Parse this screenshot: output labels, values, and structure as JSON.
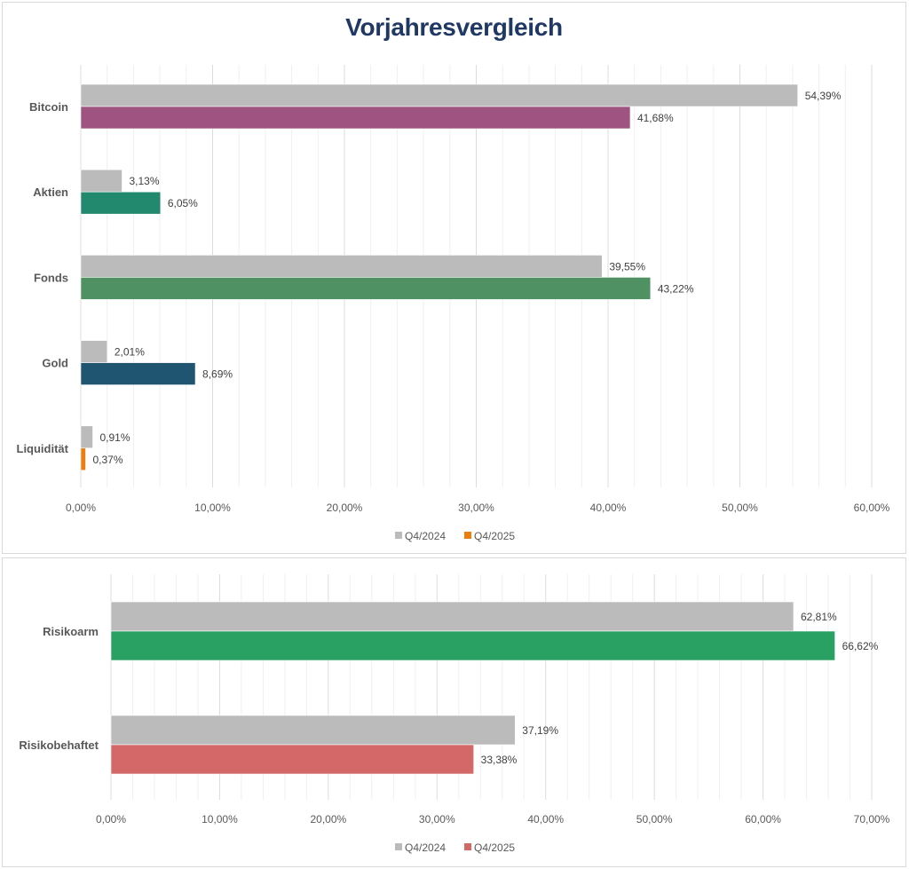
{
  "title": "Vorjahresvergleich",
  "chart_data": [
    {
      "type": "bar",
      "orientation": "horizontal",
      "title": "Vorjahresvergleich",
      "categories": [
        "Bitcoin",
        "Aktien",
        "Fonds",
        "Gold",
        "Liquidität"
      ],
      "series": [
        {
          "name": "Q4/2024",
          "values": [
            54.39,
            3.13,
            39.55,
            2.01,
            0.91
          ],
          "labels": [
            "54,39%",
            "3,13%",
            "39,55%",
            "2,01%",
            "0,91%"
          ],
          "color": "#bbbbbb"
        },
        {
          "name": "Q4/2025",
          "values": [
            41.68,
            6.05,
            43.22,
            8.69,
            0.37
          ],
          "labels": [
            "41,68%",
            "6,05%",
            "43,22%",
            "8,69%",
            "0,37%"
          ],
          "colors": [
            "#9e5381",
            "#22896f",
            "#4f9162",
            "#1f5570",
            "#ee7d0f"
          ]
        }
      ],
      "legend": [
        {
          "label": "Q4/2024",
          "color": "#bbbbbb"
        },
        {
          "label": "Q4/2025",
          "color": "#ee7d0f"
        }
      ],
      "legend_position": "bottom",
      "xlim": [
        0,
        60
      ],
      "xticks": [
        0,
        10,
        20,
        30,
        40,
        50,
        60
      ],
      "xtick_labels": [
        "0,00%",
        "10,00%",
        "20,00%",
        "30,00%",
        "40,00%",
        "50,00%",
        "60,00%"
      ],
      "minor_grid_step": 2,
      "grid": true,
      "xlabel": "",
      "ylabel": ""
    },
    {
      "type": "bar",
      "orientation": "horizontal",
      "title": "",
      "categories": [
        "Risikoarm",
        "Risikobehaftet"
      ],
      "series": [
        {
          "name": "Q4/2024",
          "values": [
            62.81,
            37.19
          ],
          "labels": [
            "62,81%",
            "37,19%"
          ],
          "color": "#bbbbbb"
        },
        {
          "name": "Q4/2025",
          "values": [
            66.62,
            33.38
          ],
          "labels": [
            "66,62%",
            "33,38%"
          ],
          "colors": [
            "#29a162",
            "#d46767"
          ]
        }
      ],
      "legend": [
        {
          "label": "Q4/2024",
          "color": "#bbbbbb"
        },
        {
          "label": "Q4/2025",
          "color": "#d46767"
        }
      ],
      "legend_position": "bottom",
      "xlim": [
        0,
        70
      ],
      "xticks": [
        0,
        10,
        20,
        30,
        40,
        50,
        60,
        70
      ],
      "xtick_labels": [
        "0,00%",
        "10,00%",
        "20,00%",
        "30,00%",
        "40,00%",
        "50,00%",
        "60,00%",
        "70,00%"
      ],
      "minor_grid_step": 2,
      "grid": true,
      "xlabel": "",
      "ylabel": ""
    }
  ]
}
